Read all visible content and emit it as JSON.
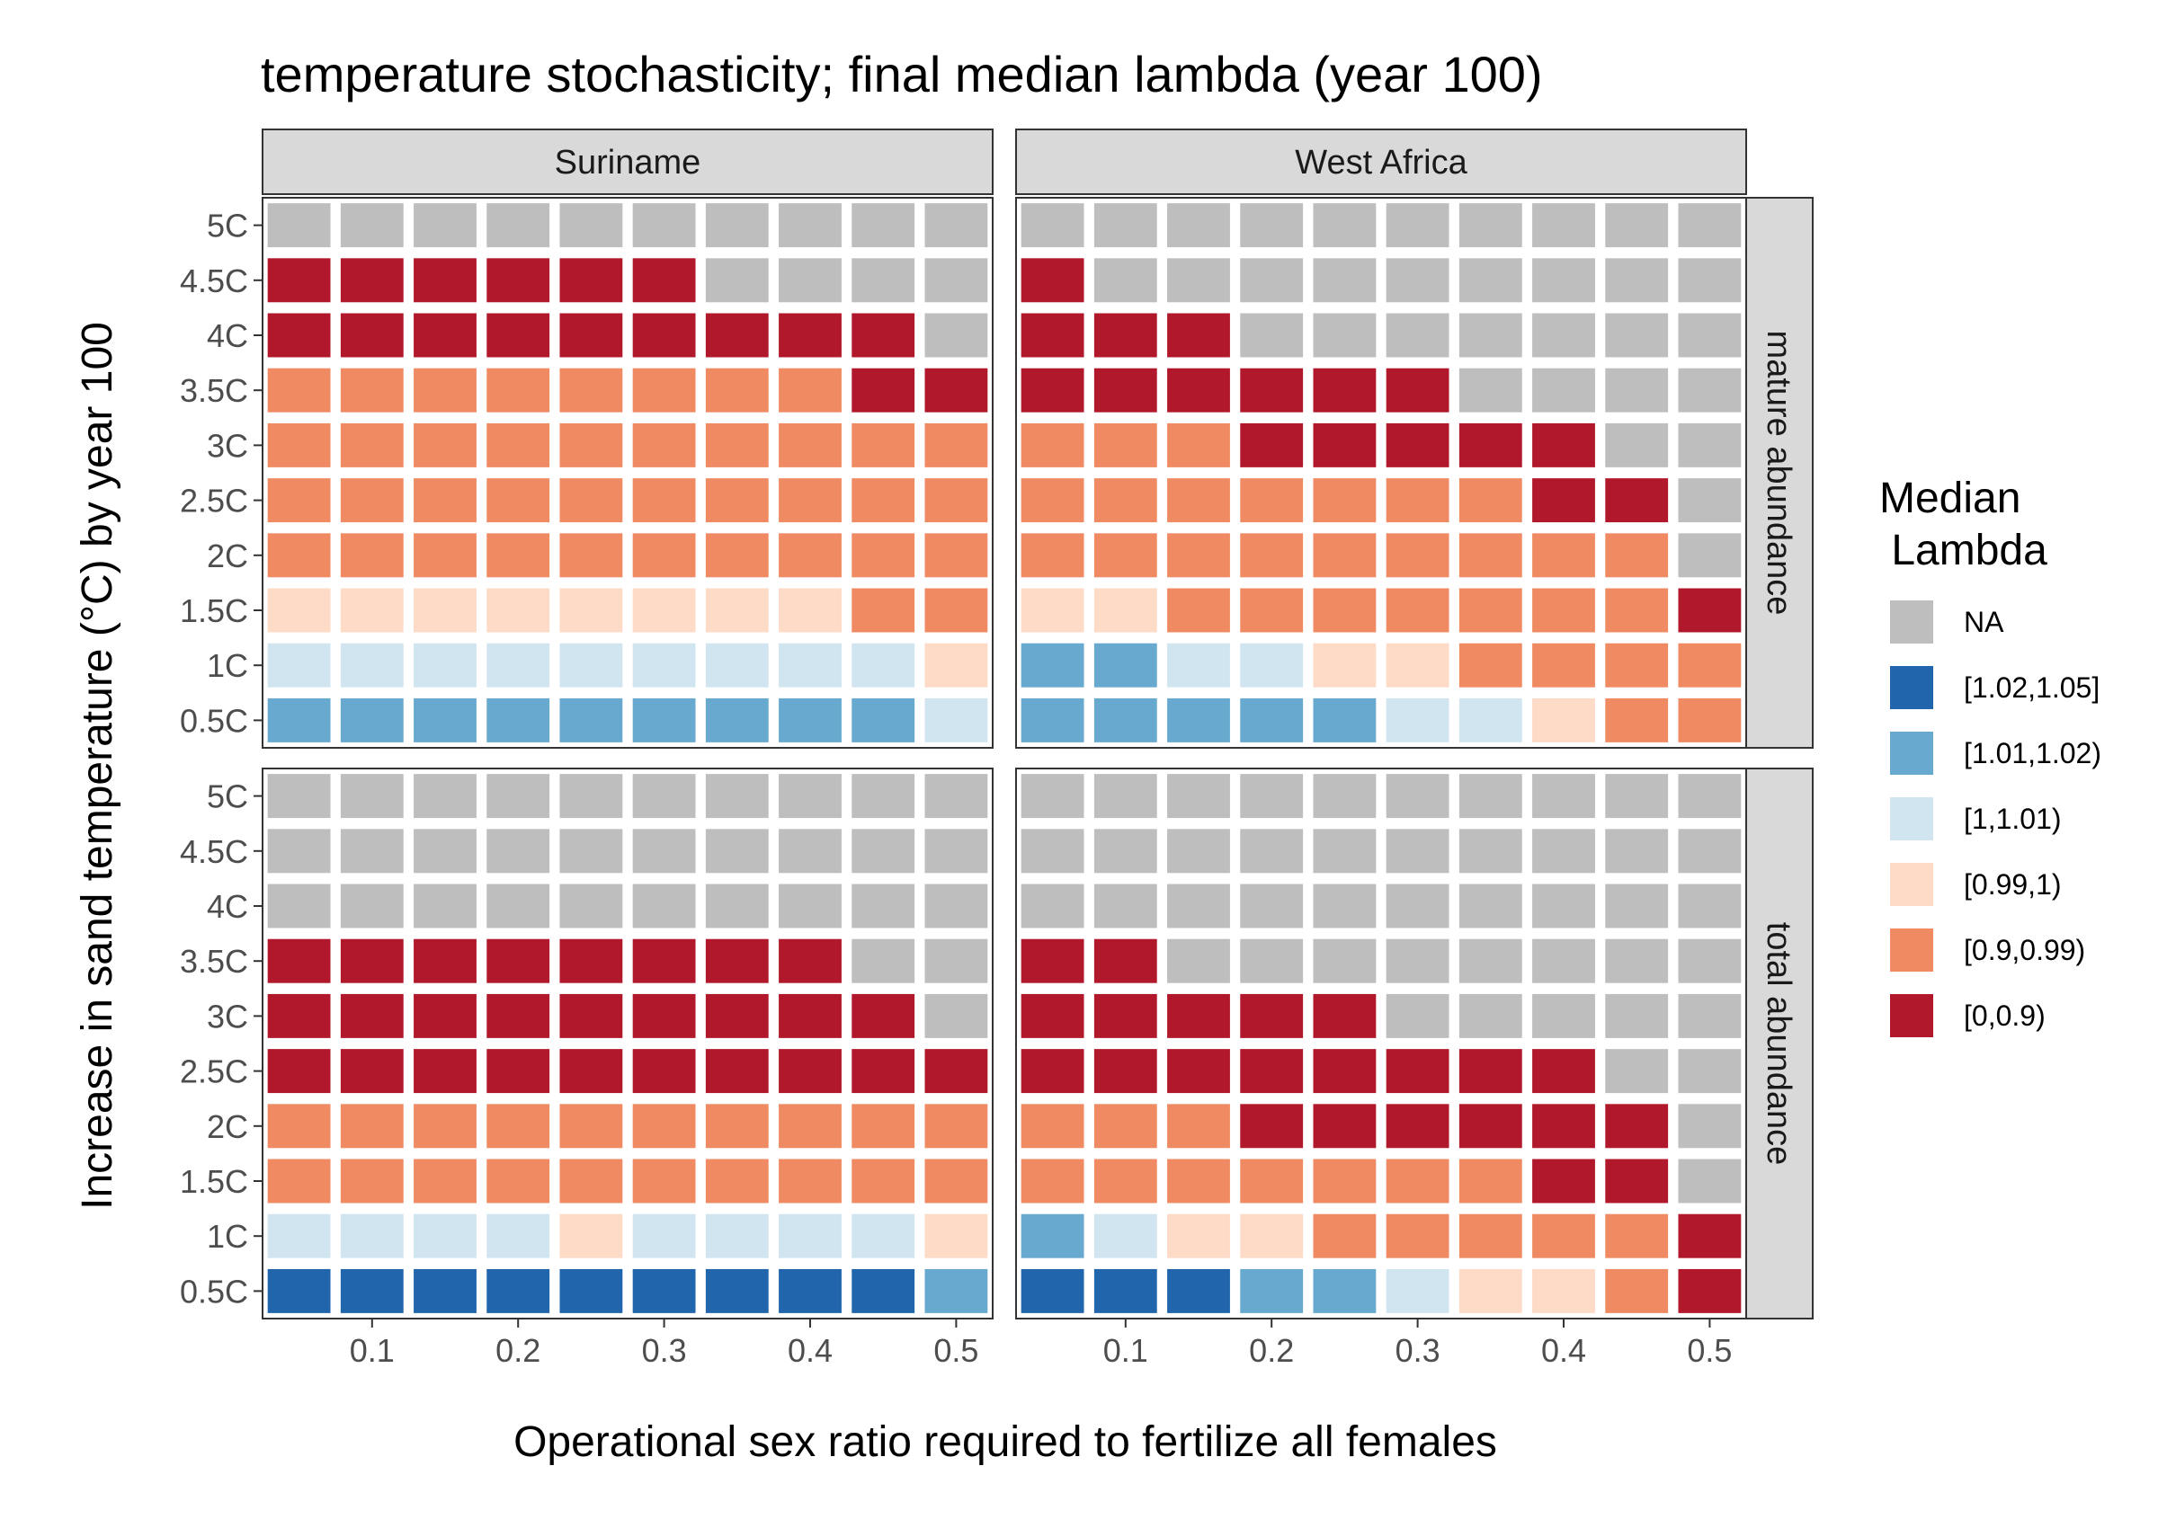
{
  "chart_data": {
    "type": "heatmap",
    "title": "temperature stochasticity; final median lambda (year 100)",
    "xlabel": "Operational sex ratio required to fertilize all females",
    "ylabel": "Increase in sand temperature (°C) by year 100",
    "x": [
      0.05,
      0.1,
      0.15,
      0.2,
      0.25,
      0.3,
      0.35,
      0.4,
      0.45,
      0.5
    ],
    "x_ticks": [
      0.1,
      0.2,
      0.3,
      0.4,
      0.5
    ],
    "x_tick_labels": [
      "0.1",
      "0.2",
      "0.3",
      "0.4",
      "0.5"
    ],
    "xlim": [
      0.025,
      0.525
    ],
    "y_categories": [
      "0.5C",
      "1C",
      "1.5C",
      "2C",
      "2.5C",
      "3C",
      "3.5C",
      "4C",
      "4.5C",
      "5C"
    ],
    "col_facets": [
      "Suriname",
      "West Africa"
    ],
    "row_facets": [
      "mature abundance",
      "total abundance"
    ],
    "grid": false,
    "legend": {
      "title_line1": "Median",
      "title_line2": " Lambda",
      "position": "right",
      "levels": [
        {
          "code": "NA",
          "label": "NA",
          "color": "#BEBEBE"
        },
        {
          "code": "A",
          "label": "[1.02,1.05]",
          "color": "#2166AC"
        },
        {
          "code": "B",
          "label": "[1.01,1.02)",
          "color": "#67A9CF"
        },
        {
          "code": "C",
          "label": "[1,1.01)",
          "color": "#D1E5F0"
        },
        {
          "code": "D",
          "label": "[0.99,1)",
          "color": "#FDDBC7"
        },
        {
          "code": "E",
          "label": "[0.9,0.99)",
          "color": "#EF8A62"
        },
        {
          "code": "F",
          "label": "[0,0.9)",
          "color": "#B2182B"
        }
      ]
    },
    "panels": [
      {
        "row": "mature abundance",
        "col": "Suriname",
        "cells": {
          "0.5C": [
            "B",
            "B",
            "B",
            "B",
            "B",
            "B",
            "B",
            "B",
            "B",
            "C"
          ],
          "1C": [
            "C",
            "C",
            "C",
            "C",
            "C",
            "C",
            "C",
            "C",
            "C",
            "D"
          ],
          "1.5C": [
            "D",
            "D",
            "D",
            "D",
            "D",
            "D",
            "D",
            "D",
            "E",
            "E"
          ],
          "2C": [
            "E",
            "E",
            "E",
            "E",
            "E",
            "E",
            "E",
            "E",
            "E",
            "E"
          ],
          "2.5C": [
            "E",
            "E",
            "E",
            "E",
            "E",
            "E",
            "E",
            "E",
            "E",
            "E"
          ],
          "3C": [
            "E",
            "E",
            "E",
            "E",
            "E",
            "E",
            "E",
            "E",
            "E",
            "E"
          ],
          "3.5C": [
            "E",
            "E",
            "E",
            "E",
            "E",
            "E",
            "E",
            "E",
            "F",
            "F"
          ],
          "4C": [
            "F",
            "F",
            "F",
            "F",
            "F",
            "F",
            "F",
            "F",
            "F",
            "NA"
          ],
          "4.5C": [
            "F",
            "F",
            "F",
            "F",
            "F",
            "F",
            "NA",
            "NA",
            "NA",
            "NA"
          ],
          "5C": [
            "NA",
            "NA",
            "NA",
            "NA",
            "NA",
            "NA",
            "NA",
            "NA",
            "NA",
            "NA"
          ]
        }
      },
      {
        "row": "mature abundance",
        "col": "West Africa",
        "cells": {
          "0.5C": [
            "B",
            "B",
            "B",
            "B",
            "B",
            "C",
            "C",
            "D",
            "E",
            "E"
          ],
          "1C": [
            "B",
            "B",
            "C",
            "C",
            "D",
            "D",
            "E",
            "E",
            "E",
            "E"
          ],
          "1.5C": [
            "D",
            "D",
            "E",
            "E",
            "E",
            "E",
            "E",
            "E",
            "E",
            "F"
          ],
          "2C": [
            "E",
            "E",
            "E",
            "E",
            "E",
            "E",
            "E",
            "E",
            "E",
            "NA"
          ],
          "2.5C": [
            "E",
            "E",
            "E",
            "E",
            "E",
            "E",
            "E",
            "F",
            "F",
            "NA"
          ],
          "3C": [
            "E",
            "E",
            "E",
            "F",
            "F",
            "F",
            "F",
            "F",
            "NA",
            "NA"
          ],
          "3.5C": [
            "F",
            "F",
            "F",
            "F",
            "F",
            "F",
            "NA",
            "NA",
            "NA",
            "NA"
          ],
          "4C": [
            "F",
            "F",
            "F",
            "NA",
            "NA",
            "NA",
            "NA",
            "NA",
            "NA",
            "NA"
          ],
          "4.5C": [
            "F",
            "NA",
            "NA",
            "NA",
            "NA",
            "NA",
            "NA",
            "NA",
            "NA",
            "NA"
          ],
          "5C": [
            "NA",
            "NA",
            "NA",
            "NA",
            "NA",
            "NA",
            "NA",
            "NA",
            "NA",
            "NA"
          ]
        }
      },
      {
        "row": "total abundance",
        "col": "Suriname",
        "cells": {
          "0.5C": [
            "A",
            "A",
            "A",
            "A",
            "A",
            "A",
            "A",
            "A",
            "A",
            "B"
          ],
          "1C": [
            "C",
            "C",
            "C",
            "C",
            "D",
            "C",
            "C",
            "C",
            "C",
            "D"
          ],
          "1.5C": [
            "E",
            "E",
            "E",
            "E",
            "E",
            "E",
            "E",
            "E",
            "E",
            "E"
          ],
          "2C": [
            "E",
            "E",
            "E",
            "E",
            "E",
            "E",
            "E",
            "E",
            "E",
            "E"
          ],
          "2.5C": [
            "F",
            "F",
            "F",
            "F",
            "F",
            "F",
            "F",
            "F",
            "F",
            "F"
          ],
          "3C": [
            "F",
            "F",
            "F",
            "F",
            "F",
            "F",
            "F",
            "F",
            "F",
            "NA"
          ],
          "3.5C": [
            "F",
            "F",
            "F",
            "F",
            "F",
            "F",
            "F",
            "F",
            "NA",
            "NA"
          ],
          "4C": [
            "NA",
            "NA",
            "NA",
            "NA",
            "NA",
            "NA",
            "NA",
            "NA",
            "NA",
            "NA"
          ],
          "4.5C": [
            "NA",
            "NA",
            "NA",
            "NA",
            "NA",
            "NA",
            "NA",
            "NA",
            "NA",
            "NA"
          ],
          "5C": [
            "NA",
            "NA",
            "NA",
            "NA",
            "NA",
            "NA",
            "NA",
            "NA",
            "NA",
            "NA"
          ]
        }
      },
      {
        "row": "total abundance",
        "col": "West Africa",
        "cells": {
          "0.5C": [
            "A",
            "A",
            "A",
            "B",
            "B",
            "C",
            "D",
            "D",
            "E",
            "F"
          ],
          "1C": [
            "B",
            "C",
            "D",
            "D",
            "E",
            "E",
            "E",
            "E",
            "E",
            "F"
          ],
          "1.5C": [
            "E",
            "E",
            "E",
            "E",
            "E",
            "E",
            "E",
            "F",
            "F",
            "NA"
          ],
          "2C": [
            "E",
            "E",
            "E",
            "F",
            "F",
            "F",
            "F",
            "F",
            "F",
            "NA"
          ],
          "2.5C": [
            "F",
            "F",
            "F",
            "F",
            "F",
            "F",
            "F",
            "F",
            "NA",
            "NA"
          ],
          "3C": [
            "F",
            "F",
            "F",
            "F",
            "F",
            "NA",
            "NA",
            "NA",
            "NA",
            "NA"
          ],
          "3.5C": [
            "F",
            "F",
            "NA",
            "NA",
            "NA",
            "NA",
            "NA",
            "NA",
            "NA",
            "NA"
          ],
          "4C": [
            "NA",
            "NA",
            "NA",
            "NA",
            "NA",
            "NA",
            "NA",
            "NA",
            "NA",
            "NA"
          ],
          "4.5C": [
            "NA",
            "NA",
            "NA",
            "NA",
            "NA",
            "NA",
            "NA",
            "NA",
            "NA",
            "NA"
          ],
          "5C": [
            "NA",
            "NA",
            "NA",
            "NA",
            "NA",
            "NA",
            "NA",
            "NA",
            "NA",
            "NA"
          ]
        }
      }
    ]
  }
}
